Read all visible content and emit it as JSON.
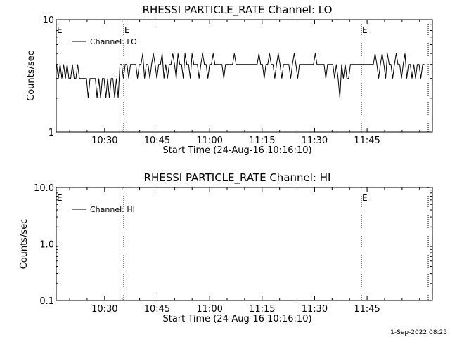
{
  "footer": {
    "timestamp": "1-Sep-2022 08:25"
  },
  "colors": {
    "background": "#ffffff",
    "foreground": "#000000"
  },
  "chart_data": [
    {
      "type": "line",
      "title": "RHESSI PARTICLE_RATE Channel: LO",
      "xlabel": "Start Time (24-Aug-16 10:16:10)",
      "ylabel": "Counts/sec",
      "x_unit": "minutes since 10:16:10",
      "xlim": [
        0,
        107.5
      ],
      "ylim": [
        1,
        10
      ],
      "yscale": "log",
      "x_ticks": [
        {
          "label": "10:30",
          "value": 13.83
        },
        {
          "label": "10:45",
          "value": 28.83
        },
        {
          "label": "11:00",
          "value": 43.83
        },
        {
          "label": "11:15",
          "value": 58.83
        },
        {
          "label": "11:30",
          "value": 73.83
        },
        {
          "label": "11:45",
          "value": 88.83
        }
      ],
      "y_ticks": [
        {
          "label": "10",
          "value": 10
        },
        {
          "label": "1",
          "value": 1
        }
      ],
      "event_lines": [
        {
          "x": 19.3,
          "label": "E"
        },
        {
          "x": 87.2,
          "label": "E"
        },
        {
          "x": 106.3,
          "label": ""
        }
      ],
      "start_marker": {
        "x": 0,
        "label": "E"
      },
      "legend": {
        "position": "top-left",
        "entries": [
          "Channel: LO"
        ]
      },
      "series": [
        {
          "name": "Channel: LO",
          "pattern": [
            4,
            3,
            4,
            3,
            4,
            3,
            4,
            3,
            3,
            4,
            3,
            3,
            4,
            3,
            3,
            3,
            3,
            3,
            2,
            3,
            3,
            3,
            3,
            2,
            3,
            2,
            3,
            3,
            2,
            3,
            2,
            3,
            3,
            2,
            3,
            2,
            4,
            4,
            3,
            4,
            4,
            3,
            4,
            4,
            4,
            4,
            3,
            4,
            4,
            5,
            3,
            4,
            4,
            3,
            4,
            5,
            4,
            3,
            4,
            4,
            5,
            3,
            4,
            3,
            4,
            4,
            5,
            4,
            3,
            5,
            4,
            4,
            3,
            5,
            4,
            4,
            3,
            5,
            4,
            4,
            4,
            3,
            4,
            5,
            4,
            4,
            3,
            4,
            4,
            5,
            4,
            4,
            4,
            4,
            4,
            3,
            4,
            4,
            4,
            4,
            4,
            5,
            4,
            4,
            4,
            4,
            4,
            4,
            4,
            4,
            4,
            4,
            4,
            4,
            4,
            5,
            4,
            4,
            3,
            4,
            4,
            5,
            4,
            4,
            3,
            4,
            5,
            4,
            3,
            4,
            4,
            4,
            4,
            3,
            4,
            5,
            4,
            3,
            4,
            4,
            4,
            4,
            4,
            4,
            4,
            4,
            4,
            5,
            4,
            4,
            4,
            4,
            4,
            3,
            4,
            4,
            4,
            4,
            3,
            4,
            3,
            2,
            4,
            3,
            4,
            3,
            3,
            4,
            4,
            4,
            4,
            4,
            4,
            4,
            4,
            4,
            4,
            4,
            4,
            4,
            4,
            5,
            4,
            3,
            4,
            5,
            4,
            3,
            5,
            4,
            4,
            3,
            4,
            5,
            4,
            4,
            3,
            4,
            5,
            3,
            4,
            4,
            3,
            4,
            3,
            4,
            4,
            3,
            4,
            4
          ],
          "x_start": 0.1,
          "x_end": 105.2
        }
      ]
    },
    {
      "type": "line",
      "title": "RHESSI PARTICLE_RATE Channel: HI",
      "xlabel": "Start Time (24-Aug-16 10:16:10)",
      "ylabel": "Counts/sec",
      "x_unit": "minutes since 10:16:10",
      "xlim": [
        0,
        107.5
      ],
      "ylim": [
        0.1,
        10
      ],
      "yscale": "log",
      "x_ticks": [
        {
          "label": "10:30",
          "value": 13.83
        },
        {
          "label": "10:45",
          "value": 28.83
        },
        {
          "label": "11:00",
          "value": 43.83
        },
        {
          "label": "11:15",
          "value": 58.83
        },
        {
          "label": "11:30",
          "value": 73.83
        },
        {
          "label": "11:45",
          "value": 88.83
        }
      ],
      "y_ticks": [
        {
          "label": "10.0",
          "value": 10
        },
        {
          "label": "1.0",
          "value": 1
        },
        {
          "label": "0.1",
          "value": 0.1
        }
      ],
      "event_lines": [
        {
          "x": 19.3,
          "label": ""
        },
        {
          "x": 87.2,
          "label": "E"
        },
        {
          "x": 106.3,
          "label": ""
        }
      ],
      "start_marker": {
        "x": 0,
        "label": "E"
      },
      "legend": {
        "position": "top-left",
        "entries": [
          "Channel: HI"
        ]
      },
      "series": [
        {
          "name": "Channel: HI",
          "pattern": []
        }
      ]
    }
  ]
}
